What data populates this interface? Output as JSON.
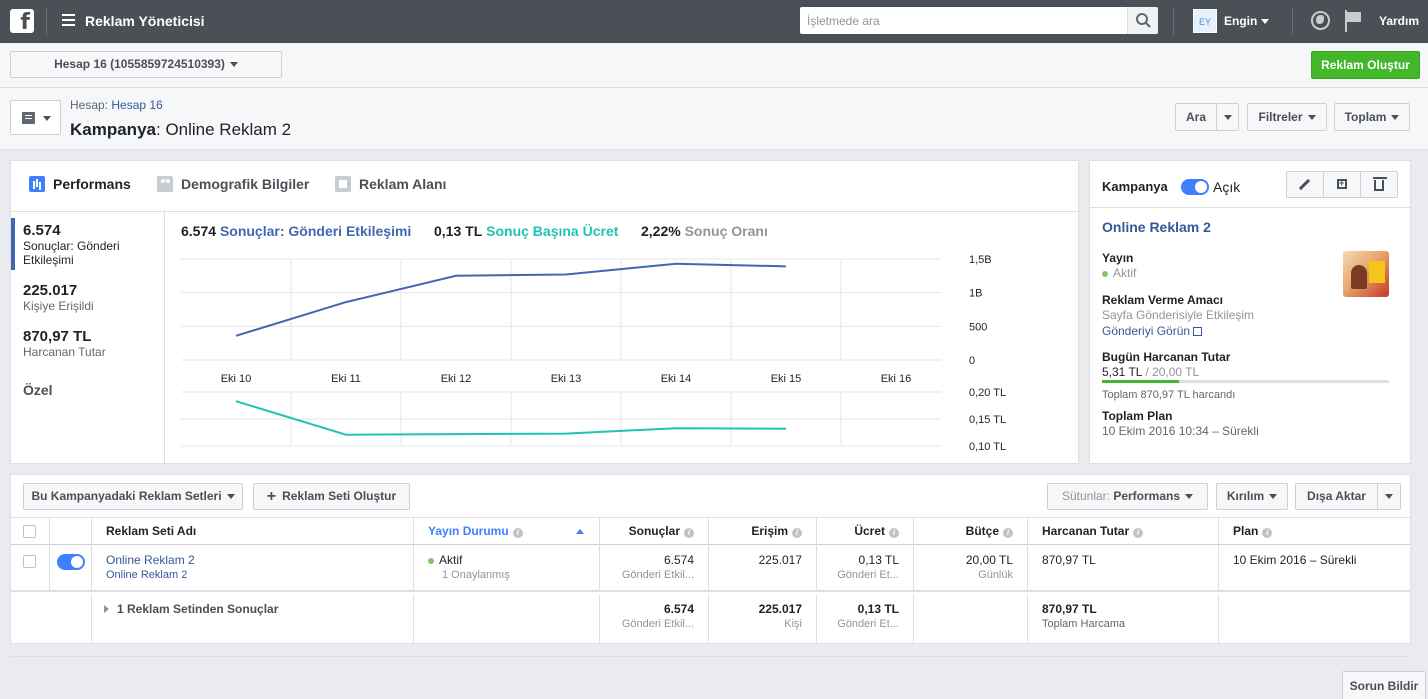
{
  "topbar": {
    "app_title": "Reklam Yöneticisi",
    "search_placeholder": "İşletmede ara",
    "avatar_initials": "EY",
    "user_name": "Engin",
    "help": "Yardım"
  },
  "account": {
    "selector_label": "Hesap 16 (1055859724510393)",
    "create_ad_label": "Reklam Oluştur"
  },
  "header": {
    "breadcrumb_prefix": "Hesap",
    "breadcrumb_link": "Hesap 16",
    "title_prefix": "Kampanya",
    "title_name": "Online Reklam 2",
    "search_label": "Ara",
    "filters_label": "Filtreler",
    "total_label": "Toplam"
  },
  "tabs": [
    "Performans",
    "Demografik Bilgiler",
    "Reklam Alanı"
  ],
  "metrics": [
    {
      "value": "6.574",
      "label_1": "Sonuçlar: Gönderi",
      "label_2": "Etkileşimi"
    },
    {
      "value": "225.017",
      "label_1": "Kişiye Erişildi",
      "label_2": ""
    },
    {
      "value": "870,97 TL",
      "label_1": "Harcanan Tutar",
      "label_2": ""
    }
  ],
  "custom_label": "Özel",
  "legend": [
    {
      "value": "6.574",
      "label": "Sonuçlar: Gönderi Etkileşimi",
      "color": "#4267b2"
    },
    {
      "value": "0,13 TL",
      "label": "Sonuç Başına Ücret",
      "color": "#20c3b0"
    },
    {
      "value": "2,22%",
      "label": "Sonuç Oranı",
      "color": "#90949c"
    }
  ],
  "chart_data": [
    {
      "type": "line",
      "x": [
        "Eki 10",
        "Eki 11",
        "Eki 12",
        "Eki 13",
        "Eki 14",
        "Eki 15",
        "Eki 16"
      ],
      "series": [
        {
          "name": "Sonuçlar: Gönderi Etkileşimi",
          "values": [
            360,
            860,
            1250,
            1270,
            1430,
            1390,
            null
          ],
          "color": "#4267b2"
        }
      ],
      "y_ticks": [
        "1,5B",
        "1B",
        "500",
        "0"
      ],
      "ylim": [
        0,
        1500
      ],
      "grid": true
    },
    {
      "type": "line",
      "x": [
        "Eki 10",
        "Eki 11",
        "Eki 12",
        "Eki 13",
        "Eki 14",
        "Eki 15",
        "Eki 16"
      ],
      "series": [
        {
          "name": "Sonuç Başına Ücret",
          "values": [
            0.183,
            0.121,
            0.122,
            0.123,
            0.133,
            0.132,
            null
          ],
          "color": "#20c3b0"
        }
      ],
      "y_ticks": [
        "0,20 TL",
        "0,15 TL",
        "0,10 TL"
      ],
      "ylim": [
        0.1,
        0.2
      ],
      "grid": true
    }
  ],
  "side": {
    "title": "Kampanya",
    "status_toggle_label": "Açık",
    "campaign_name": "Online Reklam 2",
    "publish_label": "Yayın",
    "publish_value": "Aktif",
    "objective_label": "Reklam Verme Amacı",
    "objective_value": "Sayfa Gönderisiyle Etkileşim",
    "objective_link": "Gönderiyi Görün",
    "today_spend_label": "Bugün Harcanan Tutar",
    "today_spend_value": "5,31 TL",
    "today_spend_total": " / 20,00 TL",
    "today_spend_fraction": 0.27,
    "total_spent_note": "Toplam 870,97 TL harcandı",
    "plan_label": "Toplam Plan",
    "plan_value": "10 Ekim 2016 10:34 – Sürekli"
  },
  "table": {
    "adsets_dropdown": "Bu Kampanyadaki Reklam Setleri",
    "create_adset": "Reklam Seti Oluştur",
    "columns_prefix": "Sütunlar:",
    "columns_value": "Performans",
    "breakdown": "Kırılım",
    "export": "Dışa Aktar",
    "headers": {
      "name": "Reklam Seti Adı",
      "status": "Yayın Durumu",
      "results": "Sonuçlar",
      "reach": "Erişim",
      "cost": "Ücret",
      "budget": "Bütçe",
      "spent": "Harcanan Tutar",
      "plan": "Plan"
    },
    "row": {
      "name": "Online Reklam 2",
      "sub_name": "Online Reklam 2",
      "status": "Aktif",
      "status_sub": "1 Onaylanmış",
      "results": "6.574",
      "results_sub": "Gönderi Etkil...",
      "reach": "225.017",
      "cost": "0,13 TL",
      "cost_sub": "Gönderi Et...",
      "budget": "20,00 TL",
      "budget_sub": "Günlük",
      "spent": "870,97 TL",
      "plan": "10 Ekim 2016 – Sürekli"
    },
    "summary": {
      "label": "1 Reklam Setinden Sonuçlar",
      "results": "6.574",
      "results_sub": "Gönderi Etkil...",
      "reach": "225.017",
      "reach_sub": "Kişi",
      "cost": "0,13 TL",
      "cost_sub": "Gönderi Et...",
      "spent": "870,97 TL",
      "spent_sub": "Toplam Harcama"
    }
  },
  "report_problem": "Sorun Bildir"
}
